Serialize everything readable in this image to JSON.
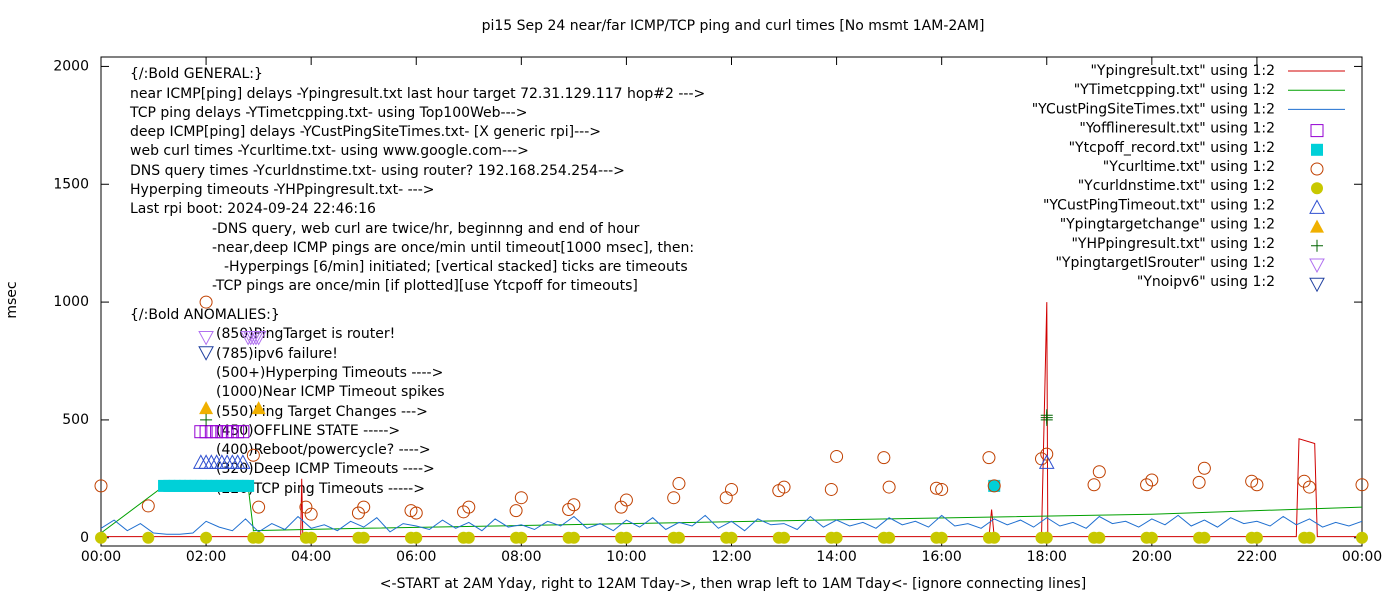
{
  "chart_data": {
    "type": "line",
    "title": "pi15 Sep 24  near/far ICMP/TCP ping and curl times [No msmt 1AM-2AM]",
    "xlabel": "<-START at 2AM Yday, right to 12AM Tday->, then wrap left to 1AM Tday<- [ignore connecting lines]",
    "ylabel": "msec",
    "xlim": [
      0,
      24
    ],
    "ylim": [
      -35,
      2040
    ],
    "xticks": [
      {
        "value": 0,
        "label": "00:00"
      },
      {
        "value": 2,
        "label": "02:00"
      },
      {
        "value": 4,
        "label": "04:00"
      },
      {
        "value": 6,
        "label": "06:00"
      },
      {
        "value": 8,
        "label": "08:00"
      },
      {
        "value": 10,
        "label": "10:00"
      },
      {
        "value": 12,
        "label": "12:00"
      },
      {
        "value": 14,
        "label": "14:00"
      },
      {
        "value": 16,
        "label": "16:00"
      },
      {
        "value": 18,
        "label": "18:00"
      },
      {
        "value": 20,
        "label": "20:00"
      },
      {
        "value": 22,
        "label": "22:00"
      },
      {
        "value": 24,
        "label": "00:00"
      }
    ],
    "yticks": [
      0,
      500,
      1000,
      1500,
      2000
    ],
    "legend": "top-right",
    "annotations": [
      "{/:Bold GENERAL:}",
      "near ICMP[ping] delays -Ypingresult.txt last hour target 72.31.129.117 hop#2 --->",
      "TCP ping delays -YTimetcpping.txt- using Top100Web--->",
      "deep ICMP[ping] delays -YCustPingSiteTimes.txt- [X generic rpi]--->",
      "web curl times -Ycurltime.txt- using www.google.com--->",
      "DNS query times -Ycurldnstime.txt- using router? 192.168.254.254--->",
      "Hyperping timeouts -YHPpingresult.txt- --->",
      "Last rpi boot: 2024-09-24 22:46:16",
      "-DNS query, web curl are twice/hr, beginnng and end of hour",
      "-near,deep ICMP pings are once/min until timeout[1000 msec], then:",
      "-Hyperpings [6/min] initiated; [vertical stacked] ticks are timeouts",
      "-TCP pings are once/min [if plotted][use Ytcpoff for timeouts]",
      "{/:Bold ANOMALIES:}",
      "(850)PingTarget is router!",
      "(785)ipv6 failure!",
      "(500+)Hyperping Timeouts ---->",
      "(1000)Near ICMP Timeout spikes",
      "(550)Ping Target Changes --->",
      "(450)OFFLINE STATE ----->",
      "(400)Reboot/powercycle? ---->",
      "(320)Deep ICMP Timeouts ---->",
      "(220)TCP ping Timeouts ----->"
    ],
    "series": [
      {
        "name": "\"Ypingresult.txt\" using 1:2",
        "color": "#d00000",
        "style": "line",
        "x": [
          0,
          3.8,
          3.82,
          3.84,
          16.9,
          16.95,
          17.0,
          17.9,
          18.0,
          18.02,
          18.05,
          22.75,
          22.8,
          23.1,
          23.15,
          24
        ],
        "values": [
          5,
          5,
          250,
          5,
          5,
          120,
          5,
          5,
          1000,
          5,
          5,
          5,
          420,
          400,
          5,
          5
        ]
      },
      {
        "name": "\"YTimetcpping.txt\" using 1:2",
        "color": "#00a000",
        "style": "line",
        "x": [
          0,
          1.2,
          2.8,
          2.9,
          5,
          10,
          15,
          20,
          24
        ],
        "values": [
          20,
          220,
          220,
          30,
          40,
          60,
          80,
          100,
          130
        ]
      },
      {
        "name": "\"YCustPingSiteTimes.txt\" using 1:2",
        "color": "#1f6fd0",
        "style": "line",
        "x": [
          0,
          0.25,
          0.5,
          0.75,
          1,
          1.25,
          1.5,
          1.75,
          2,
          2.25,
          2.5,
          2.75,
          3,
          3.25,
          3.5,
          3.75,
          4,
          4.25,
          4.5,
          4.75,
          5,
          5.25,
          5.5,
          5.75,
          6,
          6.25,
          6.5,
          6.75,
          7,
          7.25,
          7.5,
          7.75,
          8,
          8.25,
          8.5,
          8.75,
          9,
          9.25,
          9.5,
          9.75,
          10,
          10.25,
          10.5,
          10.75,
          11,
          11.25,
          11.5,
          11.75,
          12,
          12.25,
          12.5,
          12.75,
          13,
          13.25,
          13.5,
          13.75,
          14,
          14.25,
          14.5,
          14.75,
          15,
          15.25,
          15.5,
          15.75,
          16,
          16.25,
          16.5,
          16.75,
          17,
          17.25,
          17.5,
          17.75,
          18,
          18.25,
          18.5,
          18.75,
          19,
          19.25,
          19.5,
          19.75,
          20,
          20.25,
          20.5,
          20.75,
          21,
          21.25,
          21.5,
          21.75,
          22,
          22.25,
          22.5,
          22.75,
          23,
          23.25,
          23.5,
          23.75,
          24
        ],
        "values": [
          40,
          75,
          30,
          60,
          20,
          15,
          15,
          20,
          70,
          45,
          30,
          80,
          25,
          60,
          35,
          90,
          40,
          55,
          30,
          70,
          45,
          85,
          25,
          60,
          50,
          35,
          75,
          40,
          65,
          30,
          80,
          45,
          55,
          35,
          70,
          50,
          90,
          40,
          60,
          30,
          75,
          45,
          85,
          35,
          65,
          50,
          95,
          40,
          70,
          30,
          80,
          55,
          60,
          35,
          90,
          45,
          75,
          50,
          65,
          40,
          85,
          55,
          70,
          45,
          95,
          50,
          60,
          40,
          80,
          55,
          75,
          45,
          85,
          50,
          65,
          40,
          90,
          60,
          70,
          45,
          80,
          55,
          95,
          50,
          75,
          45,
          85,
          60,
          70,
          50,
          90,
          55,
          80,
          45,
          65,
          50,
          70
        ]
      },
      {
        "name": "\"Yofflineresult.txt\" using 1:2",
        "color": "#9400d3",
        "style": "points",
        "marker": "square",
        "x": [
          1.9,
          2.0,
          2.1,
          2.2,
          2.3,
          2.4,
          2.5,
          2.6,
          2.7
        ],
        "values": [
          450,
          450,
          450,
          450,
          450,
          450,
          450,
          450,
          450
        ]
      },
      {
        "name": "\"Ytcpoff_record.txt\" using 1:2",
        "color": "#00d0d8",
        "style": "points",
        "marker": "filled-square",
        "x": [
          1.2,
          1.3,
          1.4,
          1.5,
          1.6,
          1.7,
          1.8,
          1.9,
          2.0,
          2.1,
          2.2,
          2.3,
          2.4,
          2.5,
          2.6,
          2.7,
          2.8,
          17.0
        ],
        "values": [
          220,
          220,
          220,
          220,
          220,
          220,
          220,
          220,
          220,
          220,
          220,
          220,
          220,
          220,
          220,
          220,
          220,
          220
        ]
      },
      {
        "name": "\"Ycurltime.txt\" using 1:2",
        "color": "#c04000",
        "style": "points",
        "marker": "circle",
        "x": [
          0,
          0.9,
          2.0,
          2.9,
          3.0,
          3.9,
          4.0,
          4.9,
          5.0,
          5.9,
          6.0,
          6.9,
          7.0,
          7.9,
          8.0,
          8.9,
          9.0,
          9.9,
          10.0,
          10.9,
          11.0,
          11.9,
          12.0,
          12.9,
          13.0,
          13.9,
          14.0,
          14.9,
          15.0,
          15.9,
          16.0,
          16.9,
          17.0,
          17.9,
          18.0,
          18.9,
          19.0,
          19.9,
          20.0,
          20.9,
          21.0,
          21.9,
          22.0,
          22.9,
          23.0,
          24.0
        ],
        "values": [
          220,
          135,
          1000,
          350,
          130,
          130,
          100,
          105,
          130,
          115,
          105,
          110,
          130,
          115,
          170,
          120,
          140,
          130,
          160,
          170,
          230,
          170,
          205,
          200,
          215,
          205,
          345,
          340,
          215,
          210,
          205,
          340,
          220,
          335,
          355,
          225,
          280,
          225,
          245,
          235,
          295,
          240,
          225,
          240,
          215,
          225
        ]
      },
      {
        "name": "\"Ycurldnstime.txt\" using 1:2",
        "color": "#c8c800",
        "style": "points",
        "marker": "dot",
        "x": [
          0,
          0.9,
          2.0,
          2.9,
          3.0,
          3.9,
          4.0,
          4.9,
          5.0,
          5.9,
          6.0,
          6.9,
          7.0,
          7.9,
          8.0,
          8.9,
          9.0,
          9.9,
          10.0,
          10.9,
          11.0,
          11.9,
          12.0,
          12.9,
          13.0,
          13.9,
          14.0,
          14.9,
          15.0,
          15.9,
          16.0,
          16.9,
          17.0,
          17.9,
          18.0,
          18.9,
          19.0,
          19.9,
          20.0,
          20.9,
          21.0,
          21.9,
          22.0,
          22.9,
          23.0,
          24.0
        ],
        "values": [
          0,
          0,
          0,
          0,
          0,
          0,
          0,
          0,
          0,
          0,
          0,
          0,
          0,
          0,
          0,
          0,
          0,
          0,
          0,
          0,
          0,
          0,
          0,
          0,
          0,
          0,
          0,
          0,
          0,
          0,
          0,
          0,
          0,
          0,
          0,
          0,
          0,
          0,
          0,
          0,
          0,
          0,
          0,
          0,
          0,
          0
        ]
      },
      {
        "name": "\"YCustPingTimeout.txt\" using 1:2",
        "color": "#3050d0",
        "style": "points",
        "marker": "triangle",
        "x": [
          1.9,
          2.0,
          2.1,
          2.2,
          2.3,
          2.4,
          2.5,
          2.6,
          2.7,
          18.0
        ],
        "values": [
          320,
          320,
          320,
          320,
          320,
          320,
          320,
          320,
          320,
          320
        ]
      },
      {
        "name": "\"Ypingtargetchange\" using 1:2",
        "color": "#f0b000",
        "style": "points",
        "marker": "filled-triangle",
        "x": [
          2.0,
          3.0
        ],
        "values": [
          550,
          550
        ]
      },
      {
        "name": "\"YHPpingresult.txt\" using 1:2",
        "color": "#006400",
        "style": "points",
        "marker": "plus",
        "x": [
          2.0,
          18.0,
          18.0,
          18.0
        ],
        "values": [
          500,
          500,
          510,
          520
        ]
      },
      {
        "name": "\"YpingtargetISrouter\" using 1:2",
        "color": "#b070f0",
        "style": "points",
        "marker": "triangle-down",
        "x": [
          2.0,
          2.8,
          2.85,
          2.9,
          2.95,
          3.0
        ],
        "values": [
          850,
          850,
          850,
          850,
          850,
          850
        ]
      },
      {
        "name": "\"Ynoipv6\" using 1:2",
        "color": "#2040a0",
        "style": "points",
        "marker": "triangle-down",
        "x": [
          2.0
        ],
        "values": [
          785
        ]
      }
    ]
  }
}
